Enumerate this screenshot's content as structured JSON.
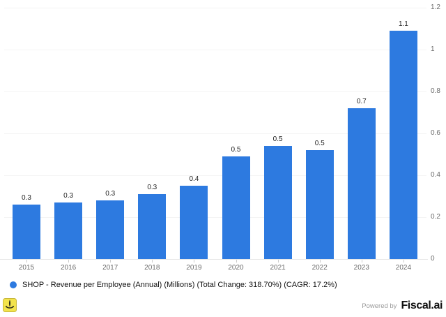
{
  "chart_data": {
    "type": "bar",
    "title": "",
    "xlabel": "",
    "ylabel": "",
    "categories": [
      "2015",
      "2016",
      "2017",
      "2018",
      "2019",
      "2020",
      "2021",
      "2022",
      "2023",
      "2024"
    ],
    "values": [
      0.26,
      0.27,
      0.28,
      0.31,
      0.35,
      0.49,
      0.54,
      0.52,
      0.72,
      1.09
    ],
    "bar_labels": [
      "0.3",
      "0.3",
      "0.3",
      "0.3",
      "0.4",
      "0.5",
      "0.5",
      "0.5",
      "0.7",
      "1.1"
    ],
    "y_ticks": [
      0,
      0.2,
      0.4,
      0.6,
      0.8,
      1,
      1.2
    ],
    "y_tick_labels": [
      "0",
      "0.2",
      "0.4",
      "0.6",
      "0.8",
      "1",
      "1.2"
    ],
    "ylim": [
      0,
      1.2
    ],
    "grid": "horizontal",
    "legend_position": "bottom-left",
    "y_axis_side": "right",
    "bar_color": "#2d7ae0",
    "series_name": "SHOP - Revenue per Employee (Annual) (Millions)"
  },
  "legend": {
    "label": "SHOP - Revenue per Employee (Annual) (Millions) (Total Change: 318.70%) (CAGR: 17.2%)",
    "dot_color": "#2d7ae0"
  },
  "footer": {
    "powered_by": "Powered by",
    "brand": "Fiscal.ai"
  },
  "icons": {
    "watermark": "yellow-badge-icon",
    "legend_dot": "series-dot-icon"
  },
  "colors": {
    "bar": "#2d7ae0",
    "gridline": "#f4f4f4",
    "axis_line": "#e7e7e7",
    "axis_text": "#6b6b6b",
    "value_label_text": "#222222",
    "watermark_yellow": "#f2e34c"
  }
}
